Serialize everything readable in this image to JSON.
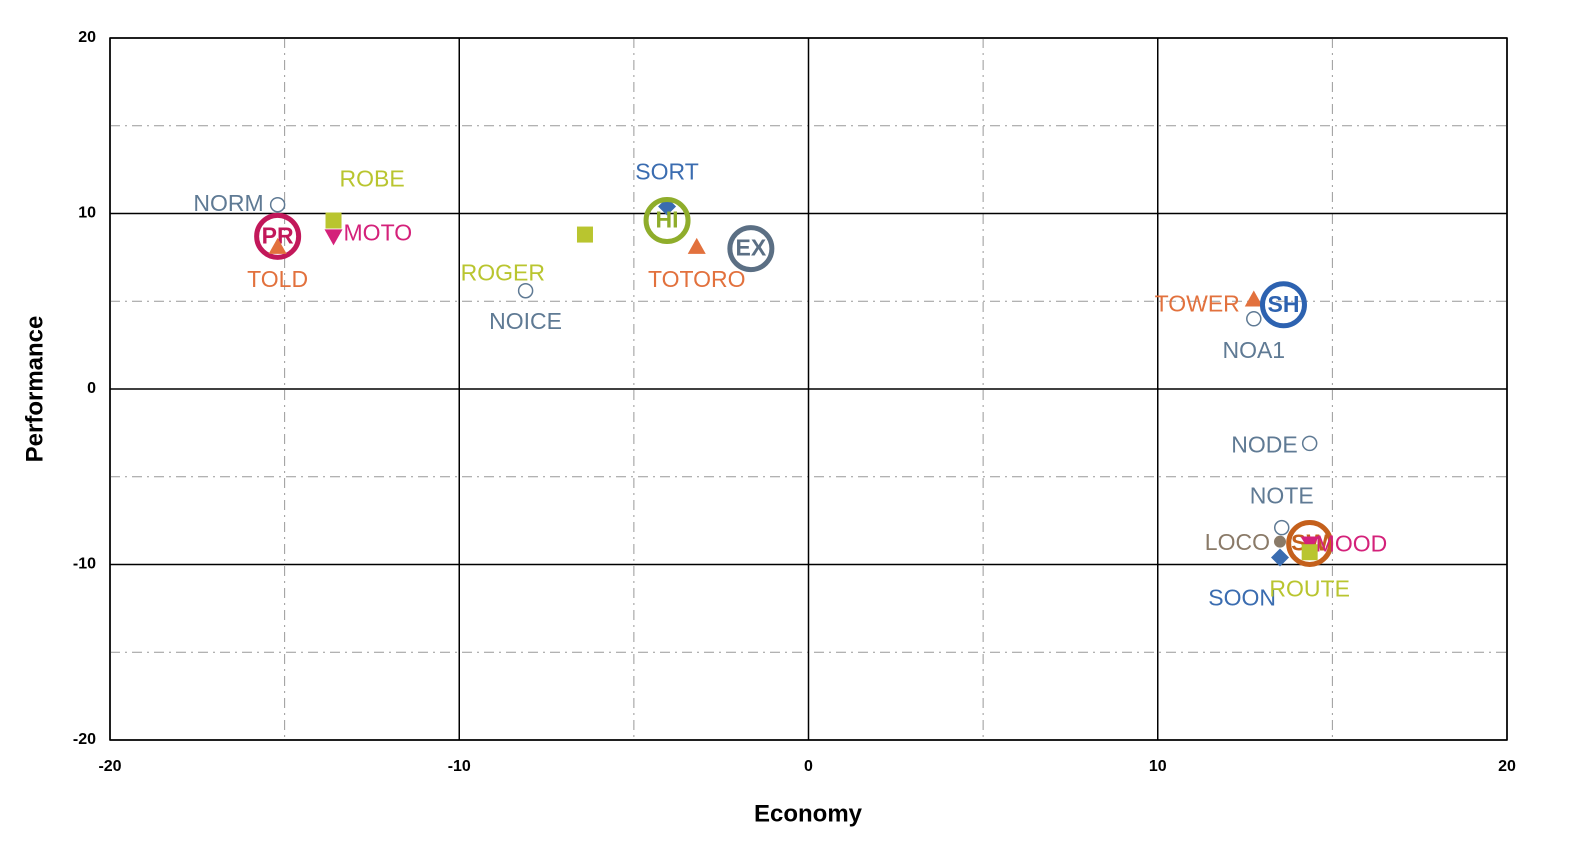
{
  "chart_data": {
    "type": "scatter",
    "xlabel": "Economy",
    "ylabel": "Performance",
    "xlim": [
      -20,
      20
    ],
    "ylim": [
      -20,
      20
    ],
    "xticks": [
      -20,
      -10,
      0,
      10,
      20
    ],
    "yticks": [
      -20,
      -10,
      0,
      10,
      20
    ],
    "minor_grid": [
      -15,
      -5,
      5,
      15
    ],
    "series": [
      {
        "name": "NORM",
        "color": "#5f7a94",
        "marker": "open-circle",
        "x": [
          -15.2
        ],
        "y": [
          10.5
        ]
      },
      {
        "name": "ROBE",
        "color": "#b9c52f",
        "marker": "square",
        "x": [
          -13.6
        ],
        "y": [
          9.6
        ]
      },
      {
        "name": "MOTO",
        "color": "#d4217a",
        "marker": "down-triangle",
        "x": [
          -13.6
        ],
        "y": [
          8.7
        ]
      },
      {
        "name": "PR",
        "color": "#c2185a",
        "marker": "ring",
        "x": [
          -15.2
        ],
        "y": [
          8.7
        ]
      },
      {
        "name": "TOLD",
        "color": "#e2713d",
        "marker": "triangle",
        "x": [
          -15.2
        ],
        "y": [
          8.1
        ]
      },
      {
        "name": "ROGER",
        "color": "#b9c52f",
        "marker": "square",
        "x": [
          -6.4
        ],
        "y": [
          8.8
        ]
      },
      {
        "name": "NOICE",
        "color": "#5f7a94",
        "marker": "open-circle",
        "x": [
          -8.1
        ],
        "y": [
          5.6
        ]
      },
      {
        "name": "SORT",
        "color": "#3a6cb0",
        "marker": "diamond",
        "x": [
          -4.05
        ],
        "y": [
          10.4
        ]
      },
      {
        "name": "HI",
        "color": "#8fad2b",
        "marker": "ring",
        "x": [
          -4.05
        ],
        "y": [
          9.6
        ]
      },
      {
        "name": "TOTORO",
        "color": "#e2713d",
        "marker": "triangle",
        "x": [
          -3.2
        ],
        "y": [
          8.1
        ]
      },
      {
        "name": "EX",
        "color": "#5b6f84",
        "marker": "ring",
        "x": [
          -1.65
        ],
        "y": [
          8.0
        ]
      },
      {
        "name": "TOWER",
        "color": "#e2713d",
        "marker": "triangle",
        "x": [
          12.75
        ],
        "y": [
          5.1
        ]
      },
      {
        "name": "NOA1",
        "color": "#5f7a94",
        "marker": "open-circle",
        "x": [
          12.75
        ],
        "y": [
          4.0
        ]
      },
      {
        "name": "SH",
        "color": "#2d62b0",
        "marker": "ring",
        "x": [
          13.6
        ],
        "y": [
          4.8
        ]
      },
      {
        "name": "NODE",
        "color": "#5f7a94",
        "marker": "open-circle",
        "x": [
          14.35
        ],
        "y": [
          -3.1
        ]
      },
      {
        "name": "NOTE",
        "color": "#5f7a94",
        "marker": "open-circle",
        "x": [
          13.55
        ],
        "y": [
          -7.9
        ]
      },
      {
        "name": "LOCO",
        "color": "#8a7a68",
        "marker": "dot",
        "x": [
          13.5
        ],
        "y": [
          -8.7
        ]
      },
      {
        "name": "SOON",
        "color": "#3a6cb0",
        "marker": "diamond",
        "x": [
          13.5
        ],
        "y": [
          -9.6
        ]
      },
      {
        "name": "SW",
        "color": "#c4601c",
        "marker": "ring",
        "x": [
          14.35
        ],
        "y": [
          -8.8
        ]
      },
      {
        "name": "MOOD",
        "color": "#d4217a",
        "marker": "down-triangle",
        "x": [
          14.35
        ],
        "y": [
          -8.8
        ]
      },
      {
        "name": "ROUTE",
        "color": "#b9c52f",
        "marker": "square",
        "x": [
          14.35
        ],
        "y": [
          -9.3
        ]
      }
    ]
  }
}
